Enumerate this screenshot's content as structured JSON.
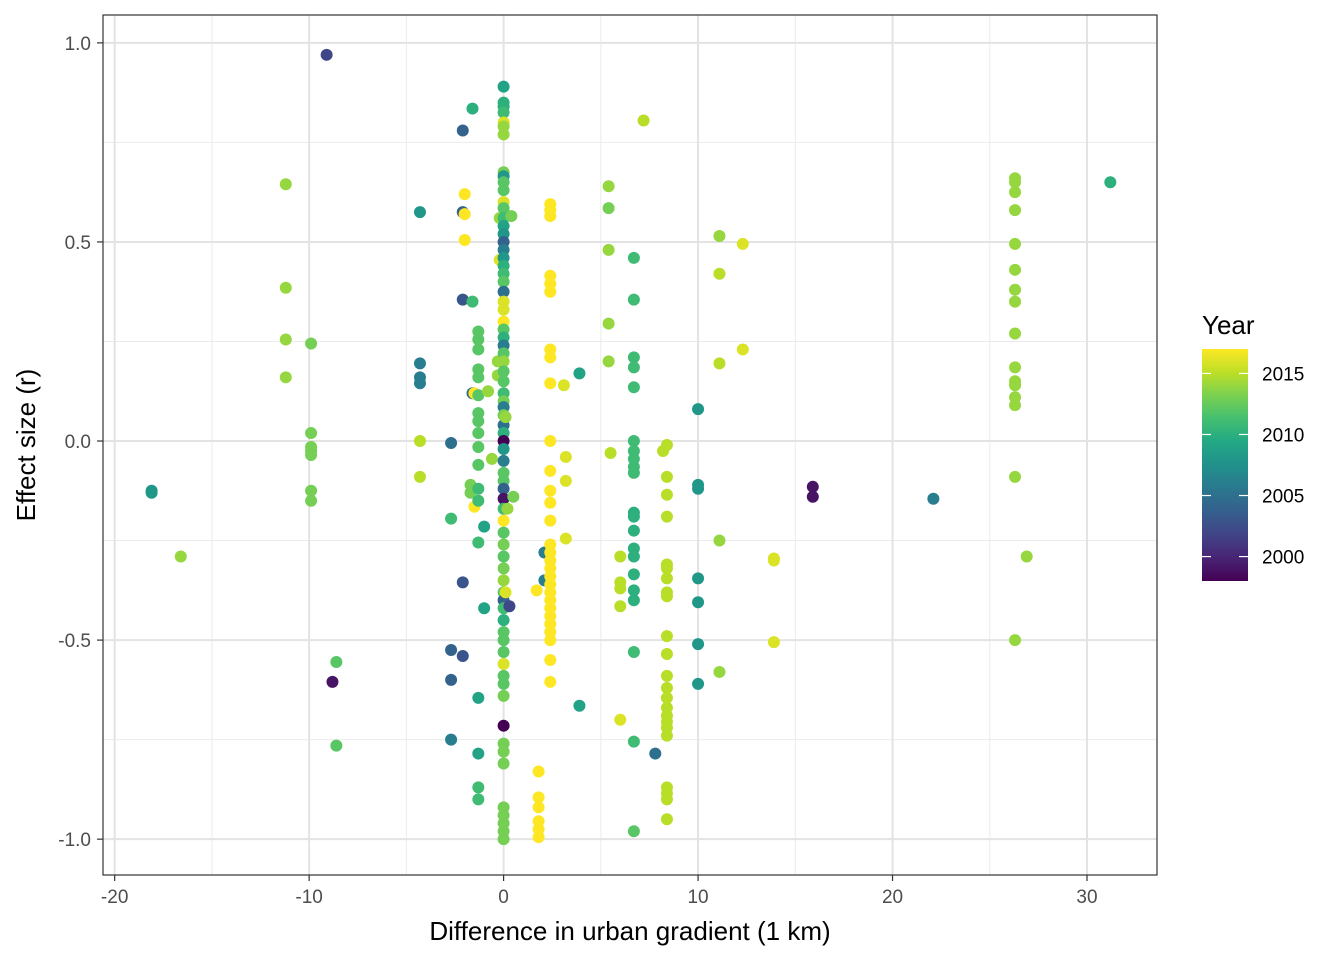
{
  "chart_data": {
    "type": "scatter",
    "title": "",
    "xlabel": "Difference in urban gradient (1 km)",
    "ylabel": "Effect size (r)",
    "xlim": [
      -20.6,
      33.6
    ],
    "ylim": [
      -1.09,
      1.07
    ],
    "x_ticks": [
      -20,
      -10,
      0,
      10,
      20,
      30
    ],
    "y_ticks": [
      -1.0,
      -0.5,
      0.0,
      0.5,
      1.0
    ],
    "x_tick_labels": [
      "-20",
      "-10",
      "0",
      "10",
      "20",
      "30"
    ],
    "y_tick_labels": [
      "-1.0",
      "-0.5",
      "0.0",
      "0.5",
      "1.0"
    ],
    "grid": true,
    "theme": "black-and-white",
    "legend": {
      "title": "Year",
      "placement": "right",
      "type": "colorbar",
      "colormap": "viridis",
      "range": [
        1998,
        2017
      ],
      "ticks": [
        2000,
        2005,
        2010,
        2015
      ],
      "tick_labels": [
        "2000",
        "2005",
        "2010",
        "2015"
      ]
    },
    "points": [
      [
        -18.1,
        -0.125,
        2008
      ],
      [
        -18.1,
        -0.13,
        2008
      ],
      [
        -16.6,
        -0.29,
        2014
      ],
      [
        -11.2,
        0.645,
        2014
      ],
      [
        -11.2,
        0.385,
        2014
      ],
      [
        -11.2,
        0.255,
        2014
      ],
      [
        -11.2,
        0.16,
        2014
      ],
      [
        -9.9,
        0.245,
        2013
      ],
      [
        -9.9,
        0.02,
        2013
      ],
      [
        -9.9,
        -0.015,
        2013
      ],
      [
        -9.9,
        -0.025,
        2013
      ],
      [
        -9.9,
        -0.035,
        2013
      ],
      [
        -9.9,
        -0.125,
        2013
      ],
      [
        -9.9,
        -0.15,
        2013
      ],
      [
        -9.1,
        0.97,
        2002
      ],
      [
        -8.6,
        -0.555,
        2012
      ],
      [
        -8.6,
        -0.765,
        2012
      ],
      [
        -8.8,
        -0.605,
        1999
      ],
      [
        -4.3,
        0.575,
        2008
      ],
      [
        -4.3,
        0.195,
        2006
      ],
      [
        -4.3,
        0.16,
        2006
      ],
      [
        -4.3,
        0.145,
        2006
      ],
      [
        -4.3,
        0.0,
        2015
      ],
      [
        -4.3,
        -0.09,
        2015
      ],
      [
        -2.7,
        -0.005,
        2005
      ],
      [
        -2.7,
        -0.195,
        2011
      ],
      [
        -2.7,
        -0.525,
        2004
      ],
      [
        -2.7,
        -0.6,
        2004
      ],
      [
        -2.7,
        -0.75,
        2006
      ],
      [
        -2.1,
        0.78,
        2004
      ],
      [
        -2.1,
        0.575,
        2004
      ],
      [
        -2.0,
        0.57,
        2017
      ],
      [
        -2.0,
        0.62,
        2017
      ],
      [
        -2.0,
        0.505,
        2017
      ],
      [
        -2.1,
        0.355,
        2003
      ],
      [
        -2.1,
        -0.355,
        2003
      ],
      [
        -2.1,
        -0.54,
        2003
      ],
      [
        -1.6,
        0.835,
        2010
      ],
      [
        -1.6,
        0.35,
        2011
      ],
      [
        -1.6,
        0.12,
        2005
      ],
      [
        -1.5,
        0.12,
        2017
      ],
      [
        -1.5,
        -0.165,
        2017
      ],
      [
        -1.7,
        -0.11,
        2013
      ],
      [
        -1.7,
        -0.13,
        2013
      ],
      [
        -1.3,
        0.275,
        2012
      ],
      [
        -1.3,
        0.255,
        2012
      ],
      [
        -1.3,
        0.23,
        2012
      ],
      [
        -1.3,
        0.18,
        2012
      ],
      [
        -1.3,
        0.16,
        2012
      ],
      [
        -1.3,
        0.115,
        2012
      ],
      [
        -1.3,
        0.07,
        2012
      ],
      [
        -1.3,
        0.05,
        2012
      ],
      [
        -1.3,
        0.02,
        2012
      ],
      [
        -1.3,
        -0.015,
        2012
      ],
      [
        -1.3,
        -0.06,
        2012
      ],
      [
        -1.3,
        -0.12,
        2011
      ],
      [
        -1.3,
        -0.15,
        2011
      ],
      [
        -1.3,
        -0.255,
        2011
      ],
      [
        -1.3,
        -0.645,
        2009
      ],
      [
        -1.3,
        -0.785,
        2009
      ],
      [
        -1.3,
        -0.87,
        2011
      ],
      [
        -1.3,
        -0.9,
        2011
      ],
      [
        -1.0,
        -0.215,
        2009
      ],
      [
        -1.0,
        -0.42,
        2009
      ],
      [
        -0.8,
        0.125,
        2014
      ],
      [
        -0.6,
        -0.045,
        2014
      ],
      [
        -0.3,
        0.2,
        2014
      ],
      [
        -0.3,
        0.165,
        2014
      ],
      [
        -0.2,
        0.56,
        2014
      ],
      [
        -0.2,
        0.455,
        2016
      ],
      [
        0,
        0.89,
        2009
      ],
      [
        0,
        0.85,
        2010
      ],
      [
        0,
        0.84,
        2010
      ],
      [
        0,
        0.825,
        2011
      ],
      [
        0,
        0.8,
        2016
      ],
      [
        0,
        0.79,
        2014
      ],
      [
        0,
        0.77,
        2014
      ],
      [
        0,
        0.675,
        2013
      ],
      [
        0,
        0.665,
        2008
      ],
      [
        0,
        0.65,
        2012
      ],
      [
        0,
        0.63,
        2012
      ],
      [
        0,
        0.6,
        2016
      ],
      [
        0,
        0.585,
        2012
      ],
      [
        0,
        0.56,
        2011
      ],
      [
        0,
        0.54,
        2009
      ],
      [
        0,
        0.52,
        2008
      ],
      [
        0,
        0.5,
        2004
      ],
      [
        0,
        0.48,
        2006
      ],
      [
        0,
        0.46,
        2008
      ],
      [
        0,
        0.44,
        2010
      ],
      [
        0,
        0.42,
        2011
      ],
      [
        0,
        0.4,
        2012
      ],
      [
        0,
        0.375,
        2005
      ],
      [
        0,
        0.35,
        2016
      ],
      [
        0,
        0.33,
        2016
      ],
      [
        0,
        0.3,
        2017
      ],
      [
        0,
        0.28,
        2012
      ],
      [
        0,
        0.26,
        2010
      ],
      [
        0,
        0.24,
        2006
      ],
      [
        0,
        0.22,
        2012
      ],
      [
        0,
        0.2,
        2014
      ],
      [
        0,
        0.175,
        2012
      ],
      [
        0,
        0.15,
        2012
      ],
      [
        0,
        0.12,
        2011
      ],
      [
        0,
        0.1,
        2013
      ],
      [
        0,
        0.085,
        2006
      ],
      [
        0,
        0.065,
        2013
      ],
      [
        0,
        0.04,
        2005
      ],
      [
        0,
        0.02,
        2010
      ],
      [
        0,
        0.0,
        1998
      ],
      [
        0,
        -0.02,
        2008
      ],
      [
        0,
        -0.05,
        2006
      ],
      [
        0,
        -0.08,
        2012
      ],
      [
        0,
        -0.1,
        2012
      ],
      [
        0,
        -0.12,
        2004
      ],
      [
        0,
        -0.145,
        1999
      ],
      [
        0,
        -0.17,
        2011
      ],
      [
        0,
        -0.2,
        2017
      ],
      [
        0,
        -0.23,
        2012
      ],
      [
        0,
        -0.26,
        2013
      ],
      [
        0,
        -0.29,
        2012
      ],
      [
        0,
        -0.32,
        2013
      ],
      [
        0,
        -0.35,
        2014
      ],
      [
        0,
        -0.38,
        2012
      ],
      [
        0,
        -0.4,
        2004
      ],
      [
        0,
        -0.42,
        2011
      ],
      [
        0,
        -0.45,
        2010
      ],
      [
        0,
        -0.48,
        2012
      ],
      [
        0,
        -0.5,
        2012
      ],
      [
        0,
        -0.53,
        2012
      ],
      [
        0,
        -0.56,
        2016
      ],
      [
        0,
        -0.59,
        2012
      ],
      [
        0,
        -0.61,
        2012
      ],
      [
        0,
        -0.64,
        2013
      ],
      [
        0,
        -0.715,
        1998
      ],
      [
        0,
        -0.76,
        2013
      ],
      [
        0,
        -0.78,
        2013
      ],
      [
        0,
        -0.81,
        2013
      ],
      [
        0,
        -0.92,
        2013
      ],
      [
        0,
        -0.94,
        2013
      ],
      [
        0,
        -0.96,
        2013
      ],
      [
        0,
        -0.98,
        2013
      ],
      [
        0,
        -1.0,
        2013
      ],
      [
        0.1,
        0.06,
        2014
      ],
      [
        0.1,
        -0.38,
        2016
      ],
      [
        0.2,
        -0.17,
        2014
      ],
      [
        0.3,
        -0.415,
        2002
      ],
      [
        0.4,
        0.565,
        2013
      ],
      [
        0.5,
        -0.14,
        2013
      ],
      [
        1.7,
        -0.375,
        2017
      ],
      [
        1.8,
        -0.83,
        2017
      ],
      [
        1.8,
        -0.895,
        2017
      ],
      [
        1.8,
        -0.92,
        2017
      ],
      [
        1.8,
        -0.955,
        2017
      ],
      [
        1.8,
        -0.975,
        2017
      ],
      [
        1.8,
        -0.995,
        2017
      ],
      [
        2.1,
        -0.28,
        2006
      ],
      [
        2.1,
        -0.35,
        2006
      ],
      [
        2.4,
        0.595,
        2017
      ],
      [
        2.4,
        0.58,
        2017
      ],
      [
        2.4,
        0.565,
        2017
      ],
      [
        2.4,
        0.415,
        2017
      ],
      [
        2.4,
        0.395,
        2017
      ],
      [
        2.4,
        0.375,
        2017
      ],
      [
        2.4,
        0.23,
        2017
      ],
      [
        2.4,
        0.21,
        2017
      ],
      [
        2.4,
        0.145,
        2017
      ],
      [
        2.4,
        0.0,
        2017
      ],
      [
        2.4,
        -0.075,
        2017
      ],
      [
        2.4,
        -0.125,
        2017
      ],
      [
        2.4,
        -0.155,
        2017
      ],
      [
        2.4,
        -0.2,
        2017
      ],
      [
        2.4,
        -0.26,
        2017
      ],
      [
        2.4,
        -0.28,
        2017
      ],
      [
        2.4,
        -0.3,
        2017
      ],
      [
        2.4,
        -0.32,
        2017
      ],
      [
        2.4,
        -0.34,
        2017
      ],
      [
        2.4,
        -0.36,
        2017
      ],
      [
        2.4,
        -0.38,
        2017
      ],
      [
        2.4,
        -0.4,
        2017
      ],
      [
        2.4,
        -0.42,
        2017
      ],
      [
        2.4,
        -0.44,
        2017
      ],
      [
        2.4,
        -0.46,
        2017
      ],
      [
        2.4,
        -0.48,
        2017
      ],
      [
        2.4,
        -0.5,
        2017
      ],
      [
        2.4,
        -0.55,
        2017
      ],
      [
        2.4,
        -0.605,
        2017
      ],
      [
        3.1,
        0.14,
        2016
      ],
      [
        3.2,
        -0.04,
        2016
      ],
      [
        3.2,
        -0.1,
        2016
      ],
      [
        3.2,
        -0.245,
        2016
      ],
      [
        3.9,
        0.17,
        2009
      ],
      [
        3.9,
        -0.665,
        2009
      ],
      [
        5.4,
        0.64,
        2014
      ],
      [
        5.4,
        0.585,
        2013
      ],
      [
        5.4,
        0.48,
        2014
      ],
      [
        5.4,
        0.295,
        2014
      ],
      [
        5.4,
        0.2,
        2014
      ],
      [
        5.5,
        -0.03,
        2015
      ],
      [
        6.0,
        -0.29,
        2015
      ],
      [
        6.0,
        -0.355,
        2015
      ],
      [
        6.0,
        -0.37,
        2015
      ],
      [
        6.0,
        -0.415,
        2015
      ],
      [
        6.0,
        -0.7,
        2016
      ],
      [
        6.7,
        0.46,
        2011
      ],
      [
        6.7,
        0.355,
        2011
      ],
      [
        6.7,
        0.21,
        2011
      ],
      [
        6.7,
        0.185,
        2011
      ],
      [
        6.7,
        0.135,
        2011
      ],
      [
        6.7,
        0.0,
        2011
      ],
      [
        6.7,
        -0.025,
        2011
      ],
      [
        6.7,
        -0.045,
        2011
      ],
      [
        6.7,
        -0.065,
        2011
      ],
      [
        6.7,
        -0.08,
        2011
      ],
      [
        6.7,
        -0.18,
        2010
      ],
      [
        6.7,
        -0.19,
        2010
      ],
      [
        6.7,
        -0.225,
        2010
      ],
      [
        6.7,
        -0.27,
        2010
      ],
      [
        6.7,
        -0.29,
        2010
      ],
      [
        6.7,
        -0.335,
        2010
      ],
      [
        6.7,
        -0.375,
        2010
      ],
      [
        6.7,
        -0.4,
        2010
      ],
      [
        6.7,
        -0.53,
        2011
      ],
      [
        6.7,
        -0.755,
        2011
      ],
      [
        6.7,
        -0.98,
        2012
      ],
      [
        7.2,
        0.805,
        2015
      ],
      [
        7.8,
        -0.785,
        2005
      ],
      [
        8.2,
        -0.025,
        2015
      ],
      [
        8.4,
        -0.01,
        2015
      ],
      [
        8.4,
        -0.09,
        2015
      ],
      [
        8.4,
        -0.135,
        2015
      ],
      [
        8.4,
        -0.19,
        2015
      ],
      [
        8.4,
        -0.31,
        2015
      ],
      [
        8.4,
        -0.32,
        2015
      ],
      [
        8.4,
        -0.345,
        2015
      ],
      [
        8.4,
        -0.38,
        2015
      ],
      [
        8.4,
        -0.39,
        2015
      ],
      [
        8.4,
        -0.49,
        2015
      ],
      [
        8.4,
        -0.535,
        2015
      ],
      [
        8.4,
        -0.59,
        2015
      ],
      [
        8.4,
        -0.62,
        2015
      ],
      [
        8.4,
        -0.645,
        2015
      ],
      [
        8.4,
        -0.67,
        2015
      ],
      [
        8.4,
        -0.69,
        2015
      ],
      [
        8.4,
        -0.705,
        2015
      ],
      [
        8.4,
        -0.72,
        2015
      ],
      [
        8.4,
        -0.74,
        2015
      ],
      [
        8.4,
        -0.87,
        2015
      ],
      [
        8.4,
        -0.885,
        2015
      ],
      [
        8.4,
        -0.9,
        2015
      ],
      [
        8.4,
        -0.95,
        2015
      ],
      [
        10.0,
        0.08,
        2008
      ],
      [
        10.0,
        -0.11,
        2008
      ],
      [
        10.0,
        -0.12,
        2008
      ],
      [
        10.0,
        -0.345,
        2008
      ],
      [
        10.0,
        -0.405,
        2008
      ],
      [
        10.0,
        -0.51,
        2008
      ],
      [
        10.0,
        -0.61,
        2008
      ],
      [
        11.1,
        0.515,
        2014
      ],
      [
        11.1,
        0.42,
        2015
      ],
      [
        11.1,
        0.195,
        2015
      ],
      [
        11.1,
        -0.25,
        2014
      ],
      [
        11.1,
        -0.58,
        2014
      ],
      [
        12.3,
        0.495,
        2016
      ],
      [
        12.3,
        0.23,
        2016
      ],
      [
        13.9,
        -0.295,
        2016
      ],
      [
        13.9,
        -0.3,
        2016
      ],
      [
        13.9,
        -0.505,
        2016
      ],
      [
        15.9,
        -0.115,
        1999
      ],
      [
        15.9,
        -0.14,
        1999
      ],
      [
        22.1,
        -0.145,
        2006
      ],
      [
        26.3,
        0.66,
        2014
      ],
      [
        26.3,
        0.65,
        2014
      ],
      [
        26.3,
        0.625,
        2014
      ],
      [
        26.3,
        0.58,
        2014
      ],
      [
        26.3,
        0.495,
        2014
      ],
      [
        26.3,
        0.43,
        2014
      ],
      [
        26.3,
        0.38,
        2014
      ],
      [
        26.3,
        0.35,
        2014
      ],
      [
        26.3,
        0.27,
        2014
      ],
      [
        26.3,
        0.185,
        2014
      ],
      [
        26.3,
        0.15,
        2014
      ],
      [
        26.3,
        0.14,
        2014
      ],
      [
        26.3,
        0.11,
        2014
      ],
      [
        26.3,
        0.09,
        2014
      ],
      [
        26.3,
        -0.09,
        2014
      ],
      [
        26.3,
        -0.5,
        2014
      ],
      [
        26.9,
        -0.29,
        2014
      ],
      [
        31.2,
        0.65,
        2010
      ]
    ]
  }
}
